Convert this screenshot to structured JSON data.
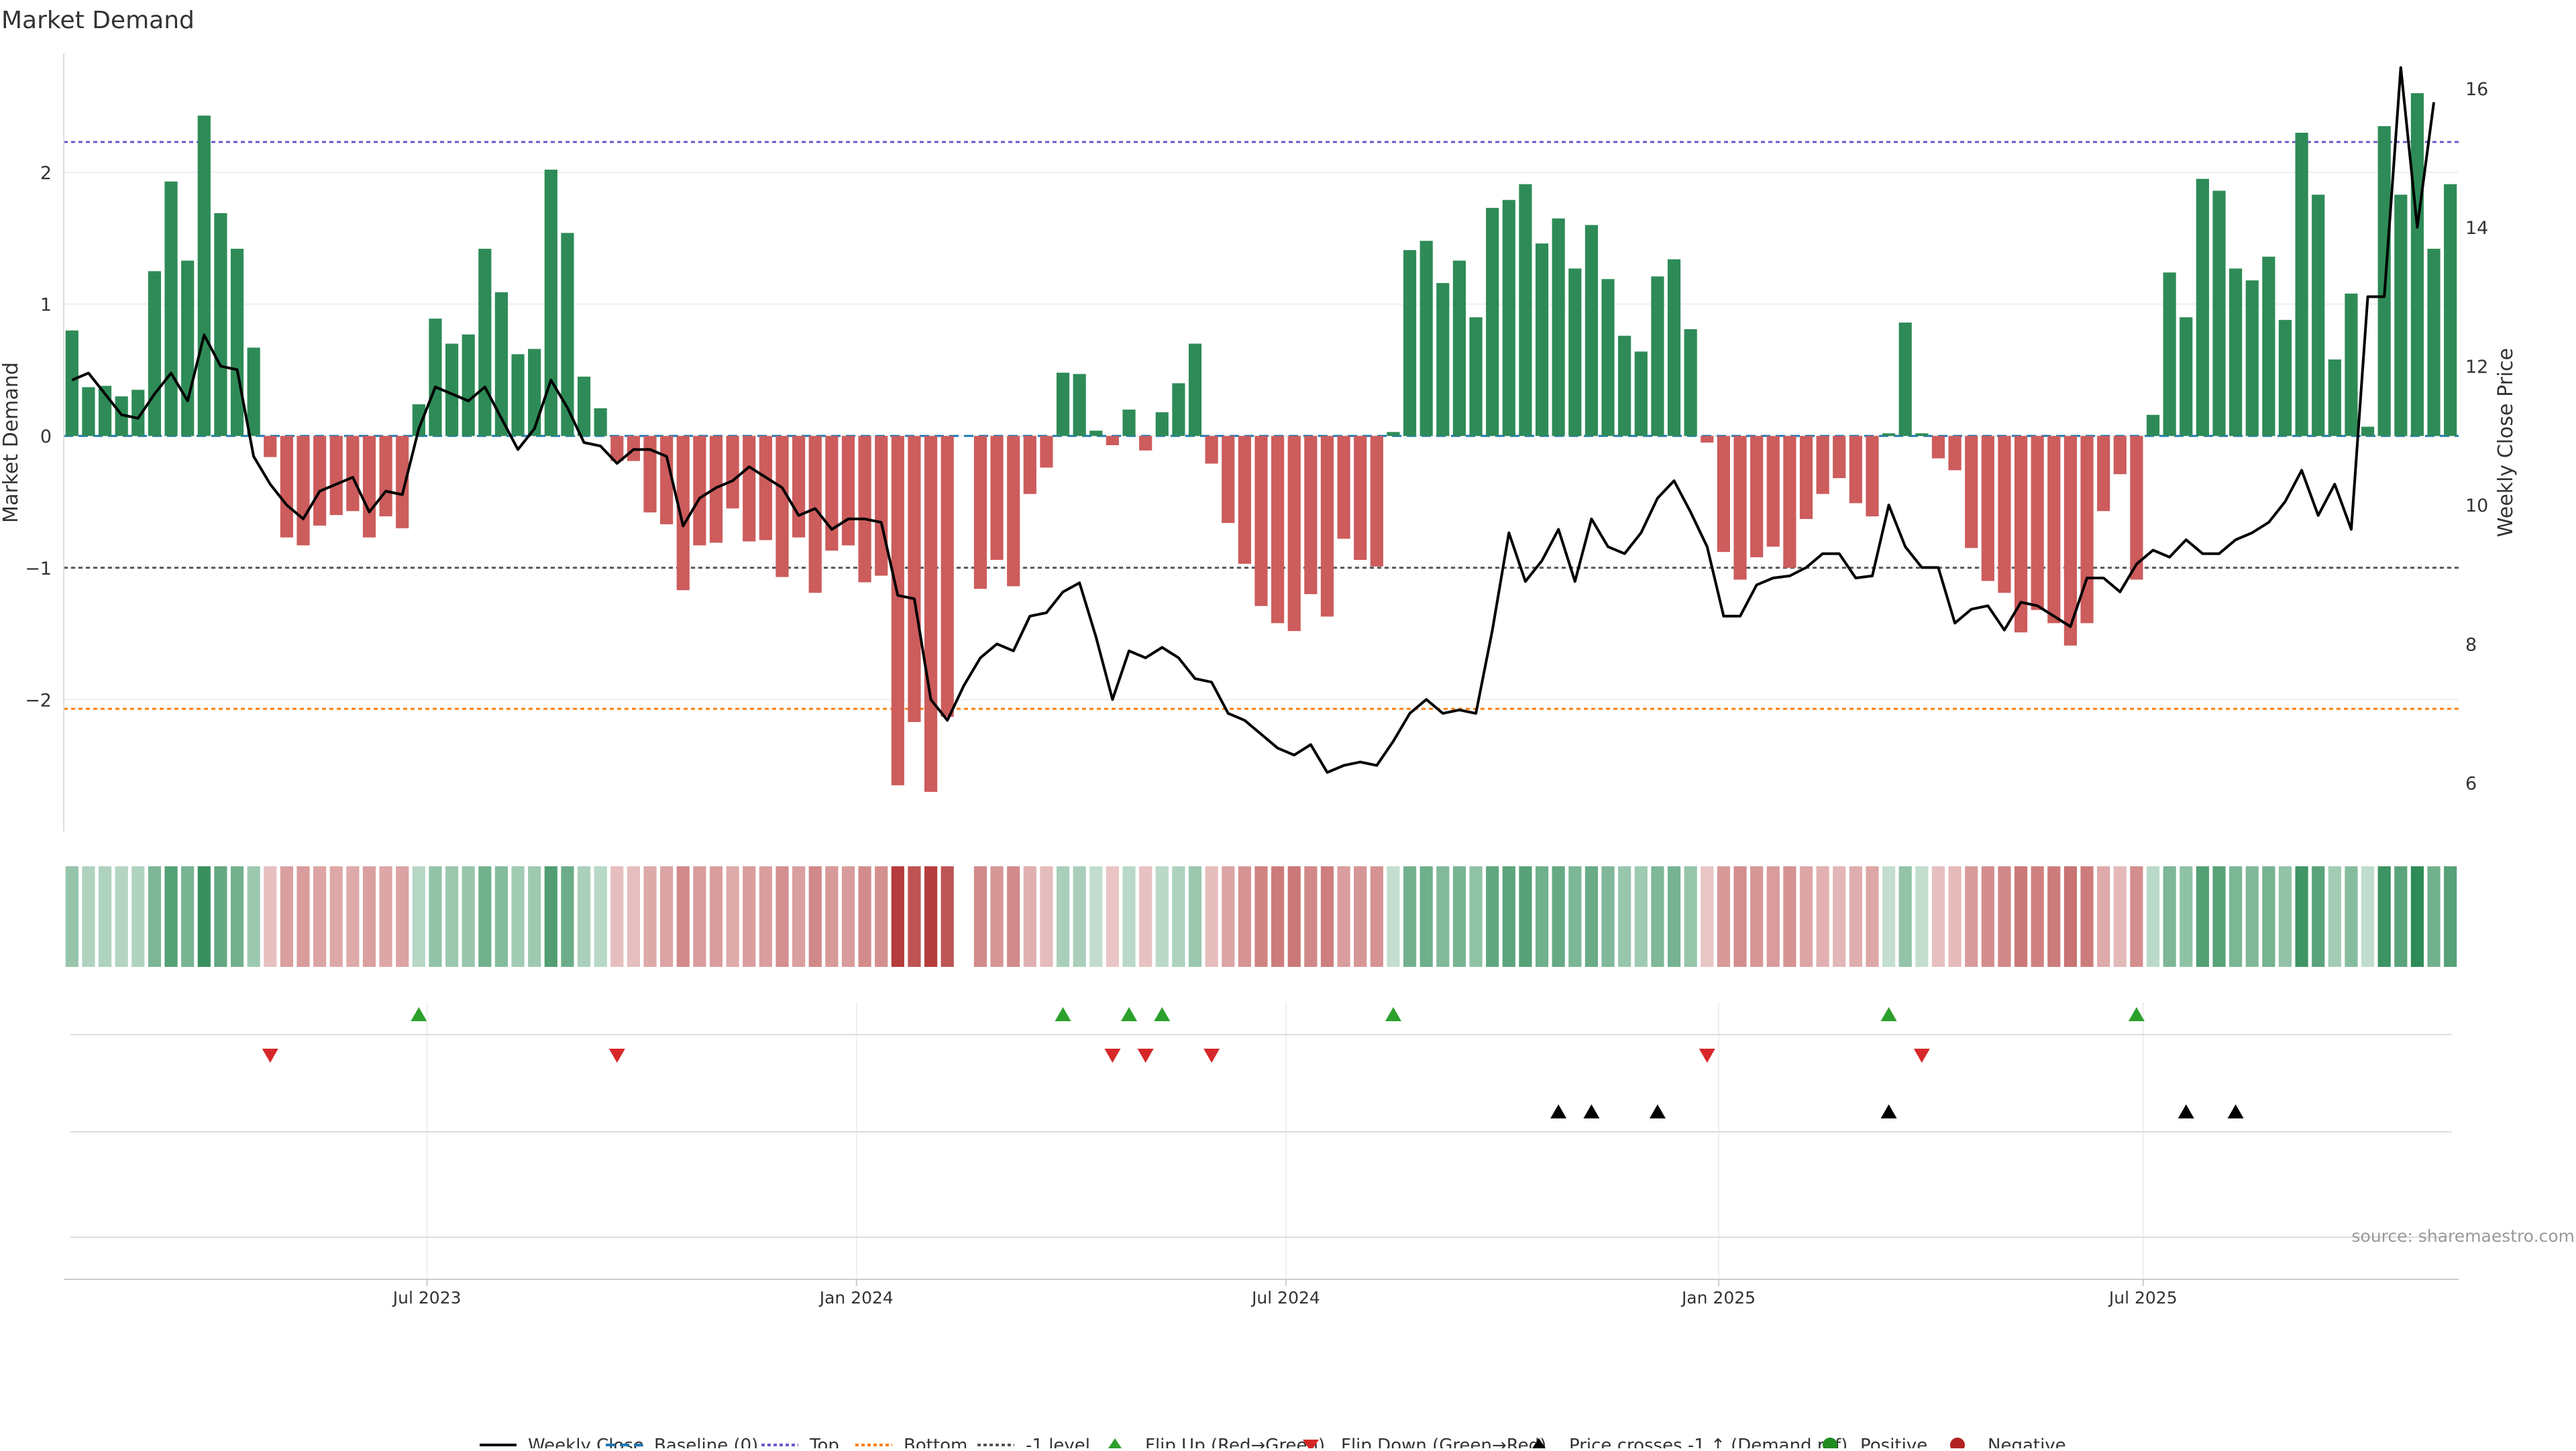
{
  "chart_data": {
    "type": "bar",
    "title": "Market Demand",
    "ylabel": "Market Demand",
    "ylabel_right": "Weekly Close Price",
    "ylim": [
      -3.0,
      2.9
    ],
    "ylim_right": [
      5.3,
      16.5
    ],
    "y_ticks": [
      -2,
      -1,
      0,
      1,
      2
    ],
    "y_tick_labels": [
      "−2",
      "−1",
      "0",
      "1",
      "2"
    ],
    "y_right_ticks": [
      6,
      8,
      10,
      12,
      14,
      16
    ],
    "y_right_tick_labels": [
      "6",
      "8",
      "10",
      "12",
      "14",
      "16"
    ],
    "x_tick_labels": [
      "Jul 2023",
      "Jan 2024",
      "Jul 2024",
      "Jan 2025",
      "Jul 2025"
    ],
    "x_tick_positions": [
      22,
      48,
      74,
      100.2,
      125.9
    ],
    "reference_lines": {
      "top": 2.23,
      "bottom": -2.07,
      "minus_one": -1.0,
      "baseline": 0
    },
    "demand": [
      0.8,
      0.37,
      0.38,
      0.3,
      0.35,
      1.25,
      1.93,
      1.33,
      2.43,
      1.69,
      1.42,
      0.67,
      -0.16,
      -0.77,
      -0.83,
      -0.68,
      -0.6,
      -0.57,
      -0.77,
      -0.61,
      -0.7,
      0.24,
      0.89,
      0.7,
      0.77,
      1.42,
      1.09,
      0.62,
      0.66,
      2.02,
      1.54,
      0.45,
      0.21,
      -0.19,
      -0.19,
      -0.58,
      -0.67,
      -1.17,
      -0.83,
      -0.81,
      -0.55,
      -0.8,
      -0.79,
      -1.07,
      -0.77,
      -1.19,
      -0.87,
      -0.83,
      -1.11,
      -1.06,
      -2.65,
      -2.17,
      -2.7,
      -2.13,
      null,
      -1.16,
      -0.94,
      -1.14,
      -0.44,
      -0.24,
      0.48,
      0.47,
      0.04,
      -0.07,
      0.2,
      -0.11,
      0.18,
      0.4,
      0.7,
      -0.21,
      -0.66,
      -0.97,
      -1.29,
      -1.42,
      -1.48,
      -1.2,
      -1.37,
      -0.78,
      -0.94,
      -0.99,
      0.03,
      1.41,
      1.48,
      1.16,
      1.33,
      0.9,
      1.73,
      1.79,
      1.91,
      1.46,
      1.65,
      1.27,
      1.6,
      1.19,
      0.76,
      0.64,
      1.21,
      1.34,
      0.81,
      -0.05,
      -0.88,
      -1.09,
      -0.92,
      -0.84,
      -1.0,
      -0.63,
      -0.44,
      -0.32,
      -0.51,
      -0.61,
      0.02,
      0.86,
      0.02,
      -0.17,
      -0.26,
      -0.85,
      -1.1,
      -1.19,
      -1.49,
      -1.32,
      -1.42,
      -1.59,
      -1.42,
      -0.57,
      -0.29,
      -1.09,
      0.16,
      1.24,
      0.9,
      1.95,
      1.86,
      1.27,
      1.18,
      1.36,
      0.88,
      2.3,
      1.83,
      0.58,
      1.08,
      0.07,
      2.35,
      1.83,
      2.6,
      1.42,
      1.91
    ],
    "close": [
      11.8,
      11.9,
      11.6,
      11.3,
      11.25,
      11.6,
      11.9,
      11.5,
      12.45,
      12.0,
      11.95,
      10.7,
      10.3,
      10.0,
      9.8,
      10.2,
      10.3,
      10.4,
      9.9,
      10.2,
      10.15,
      11.1,
      11.7,
      11.6,
      11.5,
      11.7,
      11.25,
      10.8,
      11.1,
      11.8,
      11.4,
      10.9,
      10.85,
      10.6,
      10.8,
      10.8,
      10.7,
      9.7,
      10.1,
      10.25,
      10.35,
      10.55,
      10.4,
      10.25,
      9.85,
      9.95,
      9.65,
      9.8,
      9.8,
      9.75,
      8.7,
      8.65,
      7.2,
      6.9,
      7.4,
      7.8,
      8.0,
      7.9,
      8.4,
      8.45,
      8.75,
      8.88,
      8.1,
      7.2,
      7.9,
      7.8,
      7.95,
      7.8,
      7.5,
      7.45,
      7.0,
      6.9,
      6.7,
      6.5,
      6.4,
      6.55,
      6.15,
      6.25,
      6.3,
      6.25,
      6.6,
      7.0,
      7.2,
      7.0,
      7.05,
      7.0,
      8.2,
      9.6,
      8.9,
      9.2,
      9.65,
      8.9,
      9.8,
      9.4,
      9.3,
      9.6,
      10.1,
      10.35,
      9.9,
      9.4,
      8.4,
      8.4,
      8.85,
      8.95,
      8.98,
      9.1,
      9.3,
      9.3,
      8.95,
      8.98,
      10.0,
      9.4,
      9.1,
      9.1,
      8.3,
      8.5,
      8.55,
      8.2,
      8.6,
      8.55,
      8.4,
      8.25,
      8.95,
      8.95,
      8.75,
      9.15,
      9.35,
      9.25,
      9.5,
      9.3,
      9.3,
      9.5,
      9.6,
      9.75,
      10.05,
      10.5,
      9.85,
      10.3,
      9.65,
      13.0,
      13.0,
      16.3,
      14.0,
      15.8
    ],
    "flip_up_index": [
      21,
      60,
      64,
      66,
      80,
      110,
      125
    ],
    "flip_down_index": [
      12,
      33,
      63,
      65,
      69,
      99,
      112
    ],
    "price_cross_index": [
      90,
      92,
      96,
      110,
      128,
      131
    ],
    "legend": [
      {
        "label": "Weekly Close",
        "symbol": "solid-line",
        "color": "#000000"
      },
      {
        "label": "Baseline (0)",
        "symbol": "dashed-line",
        "color": "#1f77b4"
      },
      {
        "label": "Top",
        "symbol": "dotted-line",
        "color": "#6a5acd"
      },
      {
        "label": "Bottom",
        "symbol": "dotted-line",
        "color": "#ff7f0e"
      },
      {
        "label": "-1 level",
        "symbol": "dotted-line",
        "color": "#555555"
      },
      {
        "label": "Flip Up (Red→Green)",
        "symbol": "triangle-up",
        "color": "#2ca02c"
      },
      {
        "label": "Flip Down (Green→Red)",
        "symbol": "triangle-down",
        "color": "#d62728"
      },
      {
        "label": "Price crosses -1 ↑ (Demand ref)",
        "symbol": "triangle-up",
        "color": "#000000"
      },
      {
        "label": "Positive",
        "symbol": "circle",
        "color": "#228b22"
      },
      {
        "label": "Negative",
        "symbol": "circle",
        "color": "#b22222"
      }
    ],
    "source": "source: sharemaestro.com"
  },
  "colors": {
    "positive_bar": "#2e8b57",
    "negative_bar": "#cd5c5c",
    "price_line": "#000000",
    "baseline": "#1f77b4",
    "top_line": "#6a5acd",
    "bottom_line": "#ff7f0e",
    "minus_one_line": "#555555",
    "flip_up": "#2ca02c",
    "flip_down": "#d62728",
    "price_cross": "#000000",
    "axis_text": "#333333",
    "grid": "#eeeeee"
  }
}
